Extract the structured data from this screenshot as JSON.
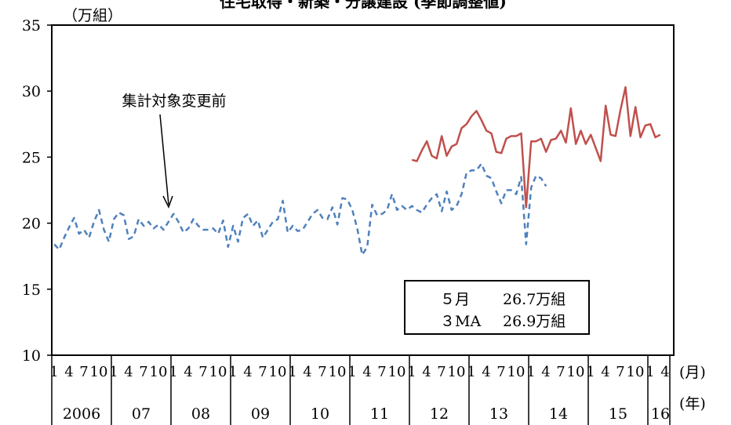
{
  "chart_data": {
    "type": "line",
    "title": "住宅取得・新築・分譲建設 (季節調整値)",
    "y_unit": "（万組）",
    "month_unit": "(月)",
    "year_unit": "(年)",
    "ylim": [
      10,
      35
    ],
    "yticks": [
      "10",
      "15",
      "20",
      "25",
      "30",
      "35"
    ],
    "year_labels": [
      "2006",
      "07",
      "08",
      "09",
      "10",
      "11",
      "12",
      "13",
      "14",
      "15",
      "16"
    ],
    "month_labels": [
      "1",
      "4",
      "7",
      "10"
    ],
    "last_year_month_labels": [
      "1",
      "4"
    ],
    "annotation": "集計対象変更前",
    "grid": false,
    "series": [
      {
        "style": "dashed",
        "color": "#4f81bd",
        "start": "2006-01",
        "values": [
          18.4,
          18.0,
          18.9,
          19.7,
          20.4,
          19.2,
          19.5,
          18.9,
          20.1,
          21.0,
          19.5,
          18.6,
          20.3,
          20.8,
          20.6,
          18.8,
          19.0,
          20.3,
          19.8,
          20.1,
          19.6,
          19.9,
          19.5,
          20.1,
          20.7,
          20.1,
          19.3,
          19.6,
          20.3,
          19.8,
          19.5,
          19.5,
          19.6,
          19.2,
          20.2,
          18.2,
          19.8,
          18.6,
          20.4,
          20.7,
          19.8,
          20.2,
          18.9,
          19.5,
          20.1,
          20.3,
          21.7,
          19.3,
          19.8,
          19.4,
          19.5,
          20.1,
          20.7,
          21.0,
          20.4,
          20.3,
          21.2,
          19.9,
          21.9,
          21.8,
          21.0,
          19.6,
          17.6,
          18.2,
          21.4,
          20.6,
          20.7,
          21.0,
          22.2,
          21.0,
          21.3,
          21.0,
          21.3,
          21.0,
          20.8,
          21.4,
          21.9,
          22.2,
          20.9,
          22.4,
          21.0,
          21.3,
          22.2,
          23.8,
          24.0,
          24.0,
          24.5,
          23.6,
          23.4,
          22.4,
          21.5,
          22.5,
          22.5,
          22.2,
          23.5,
          18.4,
          22.7,
          23.6,
          23.4,
          22.8
        ]
      },
      {
        "style": "solid",
        "color": "#c0504d",
        "start": "2012-01",
        "values": [
          24.8,
          24.7,
          25.5,
          26.2,
          25.1,
          24.9,
          26.6,
          25.1,
          25.8,
          26.0,
          27.2,
          27.5,
          28.1,
          28.5,
          27.8,
          27.0,
          26.8,
          25.4,
          25.3,
          26.4,
          26.6,
          26.6,
          26.8,
          21.2,
          26.2,
          26.2,
          26.4,
          25.4,
          26.3,
          26.4,
          27.0,
          26.1,
          28.7,
          26.0,
          27.0,
          26.0,
          26.7,
          25.7,
          24.7,
          28.9,
          26.7,
          26.6,
          28.6,
          30.3,
          26.6,
          28.8,
          26.5,
          27.4,
          27.5,
          26.5,
          26.7
        ]
      }
    ]
  },
  "legend_box": {
    "row1_key": "５月",
    "row1_val": "26.7万組",
    "row2_key": "３MA",
    "row2_val": "26.9万組"
  }
}
